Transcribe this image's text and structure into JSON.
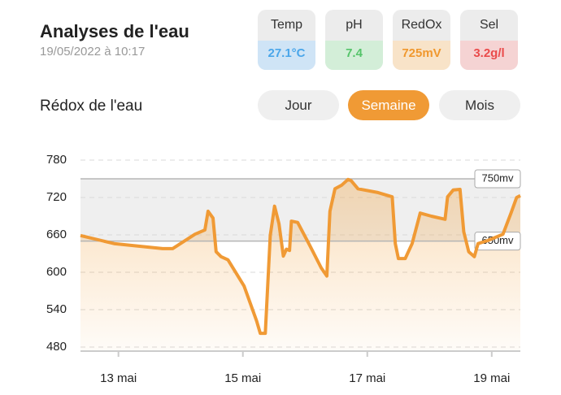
{
  "header": {
    "title": "Analyses de l'eau",
    "timestamp": "19/05/2022 à 10:17"
  },
  "cards": [
    {
      "label": "Temp",
      "value": "27.1°C",
      "color": "#4aa6ea",
      "background": "#cfe4f6"
    },
    {
      "label": "pH",
      "value": "7.4",
      "color": "#55c46a",
      "background": "#d3eed8"
    },
    {
      "label": "RedOx",
      "value": "725mV",
      "color": "#f0982e",
      "background": "#f8e3c8"
    },
    {
      "label": "Sel",
      "value": "3.2g/l",
      "color": "#ea4b4b",
      "background": "#f5d3d3"
    }
  ],
  "section_title": "Rédox de l'eau",
  "tabs": [
    {
      "label": "Jour",
      "active": false
    },
    {
      "label": "Semaine",
      "active": true
    },
    {
      "label": "Mois",
      "active": false
    }
  ],
  "chart_data": {
    "type": "area",
    "color": "#f09a35",
    "x": [
      12.39,
      12.93,
      13.71,
      13.87,
      14.23,
      14.39,
      14.44,
      14.52,
      14.57,
      14.65,
      14.76,
      15.02,
      15.22,
      15.28,
      15.36,
      15.44,
      15.51,
      15.58,
      15.65,
      15.7,
      15.75,
      15.78,
      15.88,
      16.06,
      16.26,
      16.35,
      16.4,
      16.48,
      16.59,
      16.69,
      16.74,
      16.85,
      17.17,
      17.4,
      17.45,
      17.5,
      17.61,
      17.72,
      17.85,
      18.03,
      18.25,
      18.29,
      18.38,
      18.49,
      18.55,
      18.63,
      18.72,
      18.78,
      18.94,
      19.18,
      19.31,
      19.4,
      19.46
    ],
    "values": [
      659,
      646,
      638,
      638,
      661,
      668,
      698,
      687,
      633,
      625,
      620,
      578,
      522,
      502,
      502,
      659,
      706,
      678,
      626,
      637,
      635,
      682,
      680,
      646,
      607,
      594,
      698,
      734,
      740,
      749,
      747,
      734,
      728,
      721,
      646,
      622,
      622,
      646,
      695,
      690,
      685,
      721,
      732,
      733,
      665,
      633,
      625,
      646,
      651,
      661,
      695,
      720,
      723
    ],
    "xlim": [
      12.39,
      19.46
    ],
    "xticks": [
      {
        "value": 13,
        "label": "13 mai"
      },
      {
        "value": 15,
        "label": "15 mai"
      },
      {
        "value": 17,
        "label": "17 mai"
      },
      {
        "value": 19,
        "label": "19 mai"
      }
    ],
    "ylim": [
      480,
      780
    ],
    "yticks": [
      480,
      540,
      600,
      660,
      720,
      780
    ],
    "grid": true,
    "reference_lines": [
      {
        "value": 750,
        "label": "750mv"
      },
      {
        "value": 650,
        "label": "650mv"
      }
    ]
  }
}
